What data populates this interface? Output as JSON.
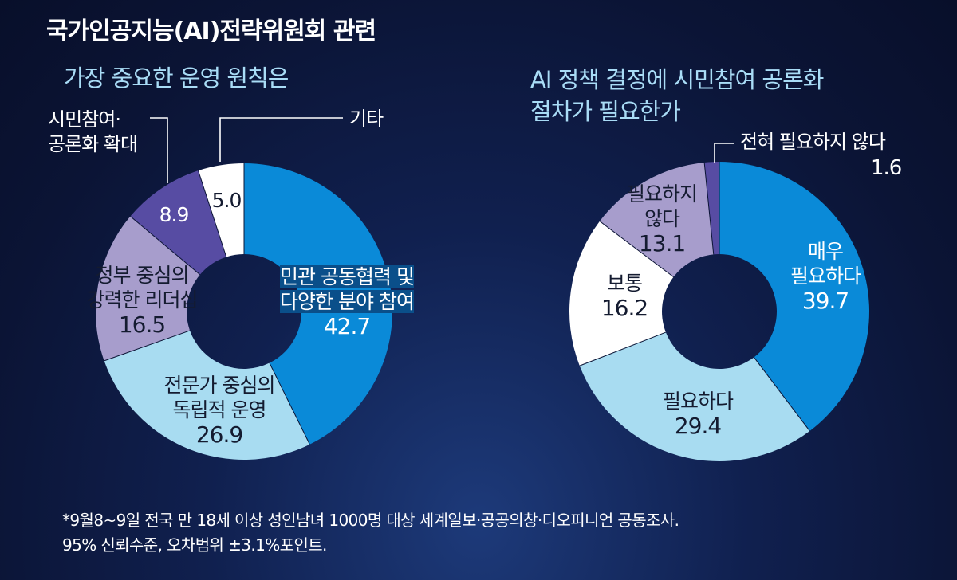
{
  "header": {
    "title": "국가인공지능(AI)전략위원회 관련"
  },
  "chart_data": [
    {
      "type": "pie",
      "title": "가장 중요한 운영 원칙은",
      "unit": "%",
      "slices": [
        {
          "label": "민관 공동협력 및 다양한 분야 참여",
          "value": 42.7,
          "color": "#0a8ad8"
        },
        {
          "label": "전문가 중심의 독립적 운영",
          "value": 26.9,
          "color": "#a8dcf1"
        },
        {
          "label": "정부 중심의 강력한 리더십",
          "value": 16.5,
          "color": "#a79dcc"
        },
        {
          "label": "시민참여·공론화 확대",
          "value": 8.9,
          "color": "#574ca3"
        },
        {
          "label": "기타",
          "value": 5.0,
          "color": "#ffffff"
        }
      ]
    },
    {
      "type": "pie",
      "title": "AI 정책 결정에 시민참여 공론화 절차가 필요한가",
      "unit": "%",
      "slices": [
        {
          "label": "매우 필요하다",
          "value": 39.7,
          "color": "#0a8ad8"
        },
        {
          "label": "필요하다",
          "value": 29.4,
          "color": "#a8dcf1"
        },
        {
          "label": "보통",
          "value": 16.2,
          "color": "#ffffff"
        },
        {
          "label": "필요하지 않다",
          "value": 13.1,
          "color": "#a79dcc"
        },
        {
          "label": "전혀 필요하지 않다",
          "value": 1.6,
          "color": "#574ca3"
        }
      ]
    }
  ],
  "labels": {
    "c1": {
      "s0": {
        "line1": "민관 공동협력 및",
        "line2": "다양한 분야 참여",
        "value": "42.7"
      },
      "s1": {
        "line1": "전문가 중심의",
        "line2": "독립적 운영",
        "value": "26.9"
      },
      "s2": {
        "line1": "정부 중심의",
        "line2": "강력한 리더십",
        "value": "16.5"
      },
      "s3": {
        "value": "8.9",
        "name1": "시민참여·",
        "name2": "공론화 확대"
      },
      "s4": {
        "value": "5.0",
        "name": "기타"
      }
    },
    "c2": {
      "s0": {
        "line1": "매우",
        "line2": "필요하다",
        "value": "39.7"
      },
      "s1": {
        "line1": "필요하다",
        "value": "29.4"
      },
      "s2": {
        "line1": "보통",
        "value": "16.2"
      },
      "s3": {
        "line1": "필요하지",
        "line2": "않다",
        "value": "13.1"
      },
      "s4": {
        "name": "전혀 필요하지 않다",
        "value": "1.6"
      }
    }
  },
  "footnote": {
    "line1": "*9월8~9일 전국 만 18세 이상 성인남녀 1000명 대상 세계일보·공공의창·디오피니언 공동조사.",
    "line2": "95% 신뢰수준, 오차범위 ±3.1%포인트."
  }
}
